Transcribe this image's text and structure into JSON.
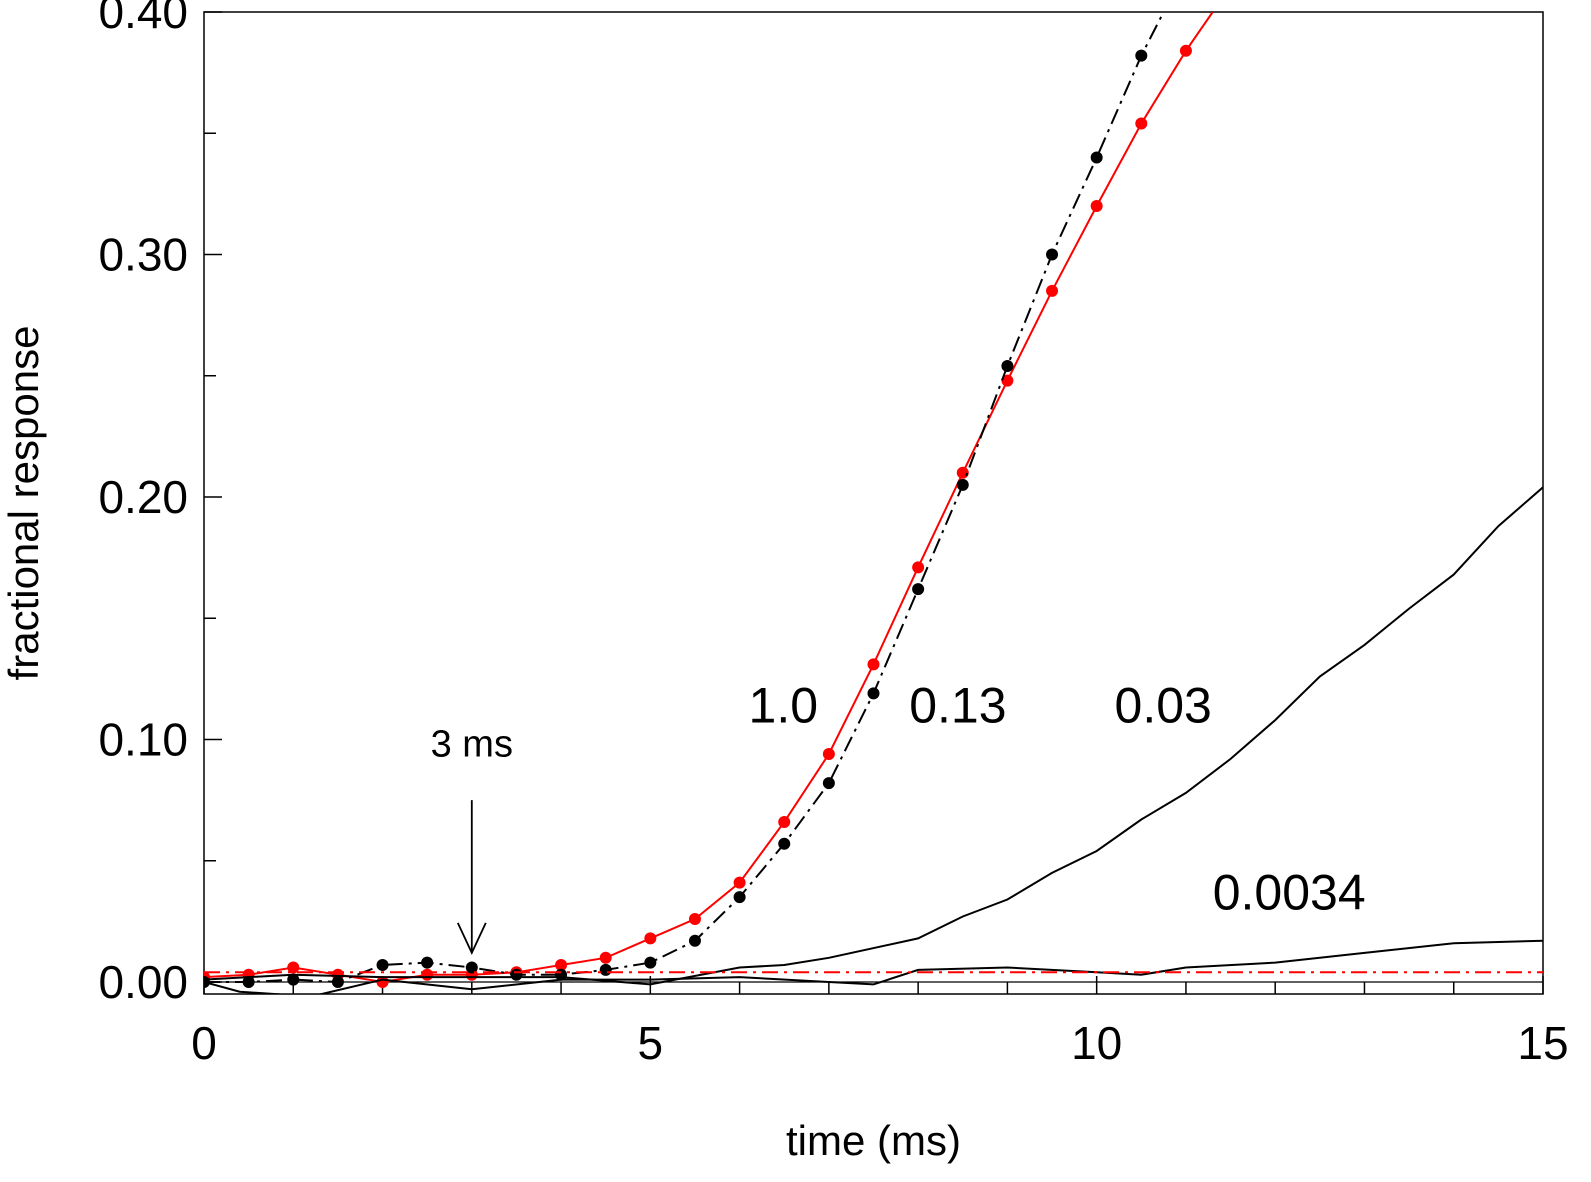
{
  "chart_data": {
    "type": "line",
    "title": "",
    "xlabel": "time (ms)",
    "ylabel": "fractional response",
    "xlim": [
      0,
      15
    ],
    "ylim": [
      -0.005,
      0.4
    ],
    "x_ticks_major": [
      0,
      5,
      10,
      15
    ],
    "x_tick_labels": [
      "0",
      "5",
      "10",
      "15"
    ],
    "y_ticks_major": [
      0.0,
      0.1,
      0.2,
      0.3,
      0.4
    ],
    "y_tick_labels": [
      "0.00",
      "0.10",
      "0.20",
      "0.30",
      "0.40"
    ],
    "grid": false,
    "series": [
      {
        "name": "1.0",
        "color": "#ff0000",
        "style": "solid-markers",
        "x": [
          0,
          0.5,
          1,
          1.5,
          2,
          2.5,
          3,
          3.5,
          4,
          4.5,
          5,
          5.5,
          6,
          6.5,
          7,
          7.5,
          8,
          8.5,
          9,
          9.5,
          10,
          10.5,
          11,
          11.3
        ],
        "values": [
          0.002,
          0.003,
          0.006,
          0.003,
          0.0,
          0.003,
          0.003,
          0.004,
          0.007,
          0.01,
          0.018,
          0.026,
          0.041,
          0.066,
          0.094,
          0.131,
          0.171,
          0.21,
          0.248,
          0.285,
          0.32,
          0.354,
          0.384,
          0.4
        ]
      },
      {
        "name": "0.13",
        "color": "#000000",
        "style": "dashdot-markers",
        "x": [
          0,
          0.5,
          1,
          1.5,
          2,
          2.5,
          3,
          3.5,
          4,
          4.5,
          5,
          5.5,
          6,
          6.5,
          7,
          7.5,
          8,
          8.5,
          9,
          9.5,
          10,
          10.5,
          10.75
        ],
        "values": [
          0.0,
          0.0,
          0.001,
          0.0,
          0.007,
          0.008,
          0.006,
          0.003,
          0.003,
          0.005,
          0.008,
          0.017,
          0.035,
          0.057,
          0.082,
          0.119,
          0.162,
          0.205,
          0.254,
          0.3,
          0.34,
          0.382,
          0.4
        ]
      },
      {
        "name": "0.03",
        "color": "#000000",
        "style": "solid",
        "x": [
          0,
          1,
          2,
          3,
          4,
          5,
          6,
          6.5,
          7,
          8,
          8.5,
          9,
          9.5,
          10,
          10.5,
          11,
          11.5,
          12,
          12.5,
          13,
          13.5,
          14,
          14.5,
          15
        ],
        "values": [
          0.001,
          0.003,
          0.002,
          0.002,
          0.002,
          -0.001,
          0.006,
          0.007,
          0.01,
          0.018,
          0.027,
          0.034,
          0.045,
          0.054,
          0.067,
          0.078,
          0.092,
          0.108,
          0.126,
          0.139,
          0.154,
          0.168,
          0.188,
          0.204
        ]
      },
      {
        "name": "0.0034",
        "color": "#000000",
        "style": "solid",
        "x": [
          0,
          0.4,
          1.2,
          2,
          3,
          4,
          5,
          6,
          7,
          7.5,
          8,
          9,
          10,
          10.5,
          11,
          12,
          13,
          14,
          15
        ],
        "values": [
          0.0,
          -0.004,
          -0.006,
          0.001,
          -0.003,
          0.001,
          0.001,
          0.002,
          0.0,
          -0.001,
          0.005,
          0.006,
          0.004,
          0.003,
          0.006,
          0.008,
          0.012,
          0.016,
          0.017
        ]
      },
      {
        "name": "",
        "color": "#ff0000",
        "style": "dashdot",
        "x": [
          0,
          15
        ],
        "values": [
          0.004,
          0.004
        ]
      }
    ],
    "annotations": [
      {
        "text": "1.0",
        "x": 6.1,
        "y": 0.107
      },
      {
        "text": "0.13",
        "x": 7.9,
        "y": 0.107
      },
      {
        "text": "0.03",
        "x": 10.2,
        "y": 0.107
      },
      {
        "text": "0.0034",
        "x": 11.3,
        "y": 0.03
      }
    ],
    "arrow": {
      "label": "3 ms",
      "x": 3.0,
      "y_from": 0.075,
      "y_to": 0.012
    }
  }
}
